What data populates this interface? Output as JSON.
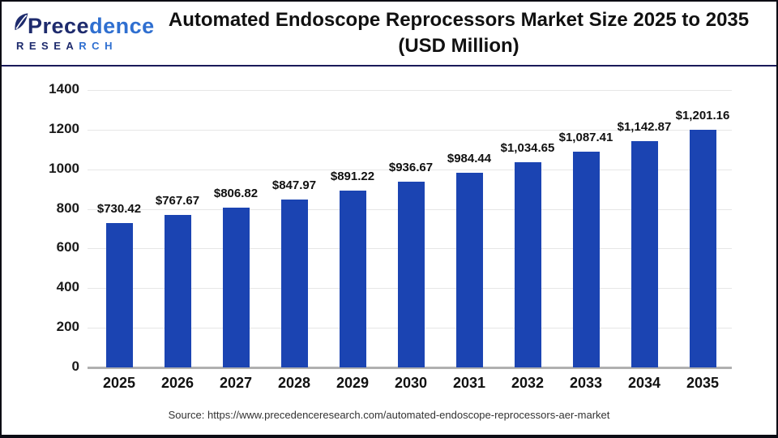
{
  "logo": {
    "name": "Precedence Research",
    "word_part1": "Prece",
    "word_part2": "dence",
    "sub_part1": "RESEA",
    "sub_part2": "RCH",
    "dark_color": "#1e2b6d",
    "blue_color": "#2f6fd0"
  },
  "title": {
    "line1": "Automated Endoscope Reprocessors Market Size 2025 to 2035",
    "line2": "(USD Million)"
  },
  "source": "Source: https://www.precedenceresearch.com/automated-endoscope-reprocessors-aer-market",
  "chart_data": {
    "type": "bar",
    "title": "Automated Endoscope Reprocessors Market Size 2025 to 2035 (USD Million)",
    "categories": [
      "2025",
      "2026",
      "2027",
      "2028",
      "2029",
      "2030",
      "2031",
      "2032",
      "2033",
      "2034",
      "2035"
    ],
    "values": [
      730.42,
      767.67,
      806.82,
      847.97,
      891.22,
      936.67,
      984.44,
      1034.65,
      1087.41,
      1142.87,
      1201.16
    ],
    "value_labels": [
      "$730.42",
      "$767.67",
      "$806.82",
      "$847.97",
      "$891.22",
      "$936.67",
      "$984.44",
      "$1,034.65",
      "$1,087.41",
      "$1,142.87",
      "$1,201.16"
    ],
    "xlabel": "",
    "ylabel": "",
    "ylim": [
      0,
      1400
    ],
    "y_ticks": [
      0,
      200,
      400,
      600,
      800,
      1000,
      1200,
      1400
    ],
    "grid": "horizontal",
    "legend": "none",
    "bar_color": "#1b44b2",
    "gridline_color": "#e6e6e6",
    "axis_line_color": "#b0b0b0"
  }
}
